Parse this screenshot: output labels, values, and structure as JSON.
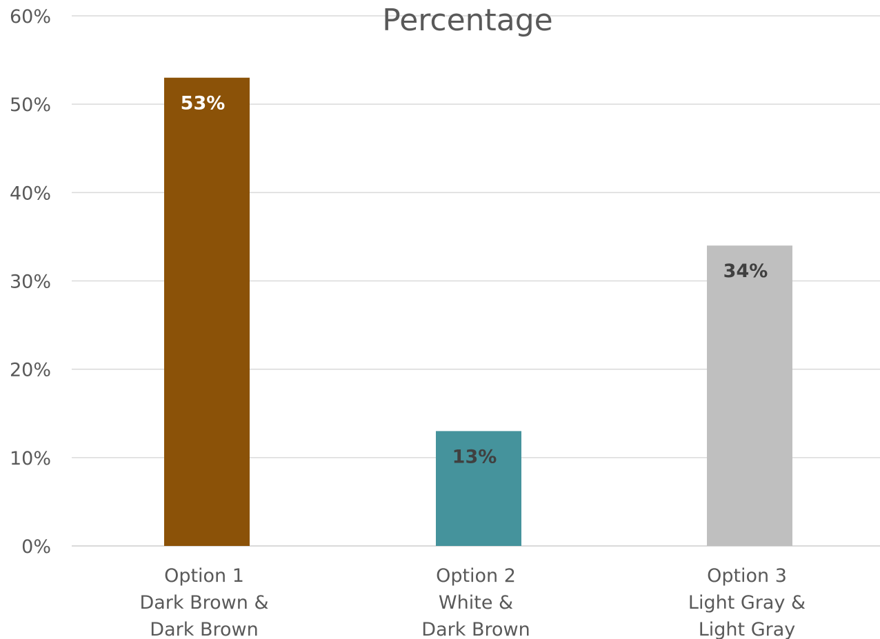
{
  "chart_data": {
    "type": "bar",
    "title": "Percentage",
    "xlabel": "",
    "ylabel": "",
    "categories": [
      [
        "Option 1",
        "Dark Brown &",
        "Dark Brown"
      ],
      [
        "Option 2",
        "White &",
        "Dark Brown"
      ],
      [
        "Option 3",
        "Light Gray &",
        "Light Gray"
      ]
    ],
    "values": [
      53,
      13,
      34
    ],
    "data_labels": [
      "53%",
      "13%",
      "34%"
    ],
    "y_ticks": [
      "0%",
      "10%",
      "20%",
      "30%",
      "40%",
      "50%",
      "60%"
    ],
    "ylim": [
      0,
      60
    ],
    "grid": true,
    "legend": "none",
    "colors": [
      "#8B5208",
      "#45939C",
      "#BFBFBF"
    ],
    "label_colors": [
      "#ffffff",
      "#404040",
      "#404040"
    ]
  }
}
